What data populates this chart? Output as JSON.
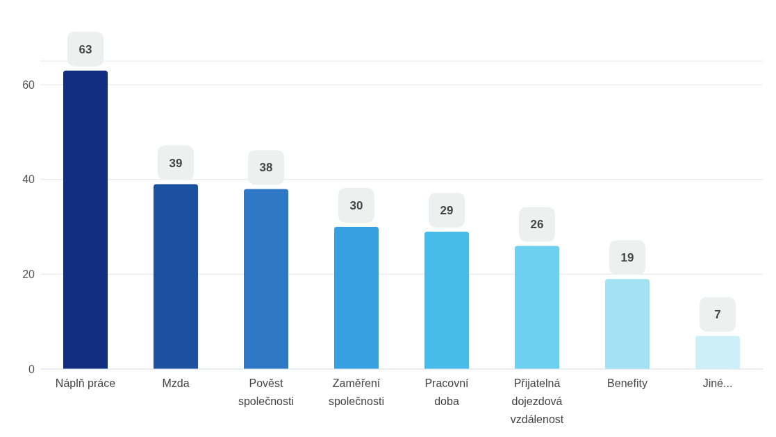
{
  "chart_data": {
    "type": "bar",
    "categories": [
      "Náplň práce",
      "Mzda",
      "Pověst společnosti",
      "Zaměření společnosti",
      "Pracovní doba",
      "Přijatelná dojezdová vzdálenost",
      "Benefity",
      "Jiné..."
    ],
    "values": [
      63,
      39,
      38,
      30,
      29,
      26,
      19,
      7
    ],
    "colors": [
      "#112e80",
      "#1c50a0",
      "#2e78c6",
      "#359fdf",
      "#47bbe9",
      "#6dd0f0",
      "#a2e2f3",
      "#cdf0f8"
    ],
    "ylim": [
      0,
      65
    ],
    "yticks": [
      0,
      20,
      40,
      60
    ],
    "grid": "y",
    "data_labels": true,
    "legend": false
  }
}
